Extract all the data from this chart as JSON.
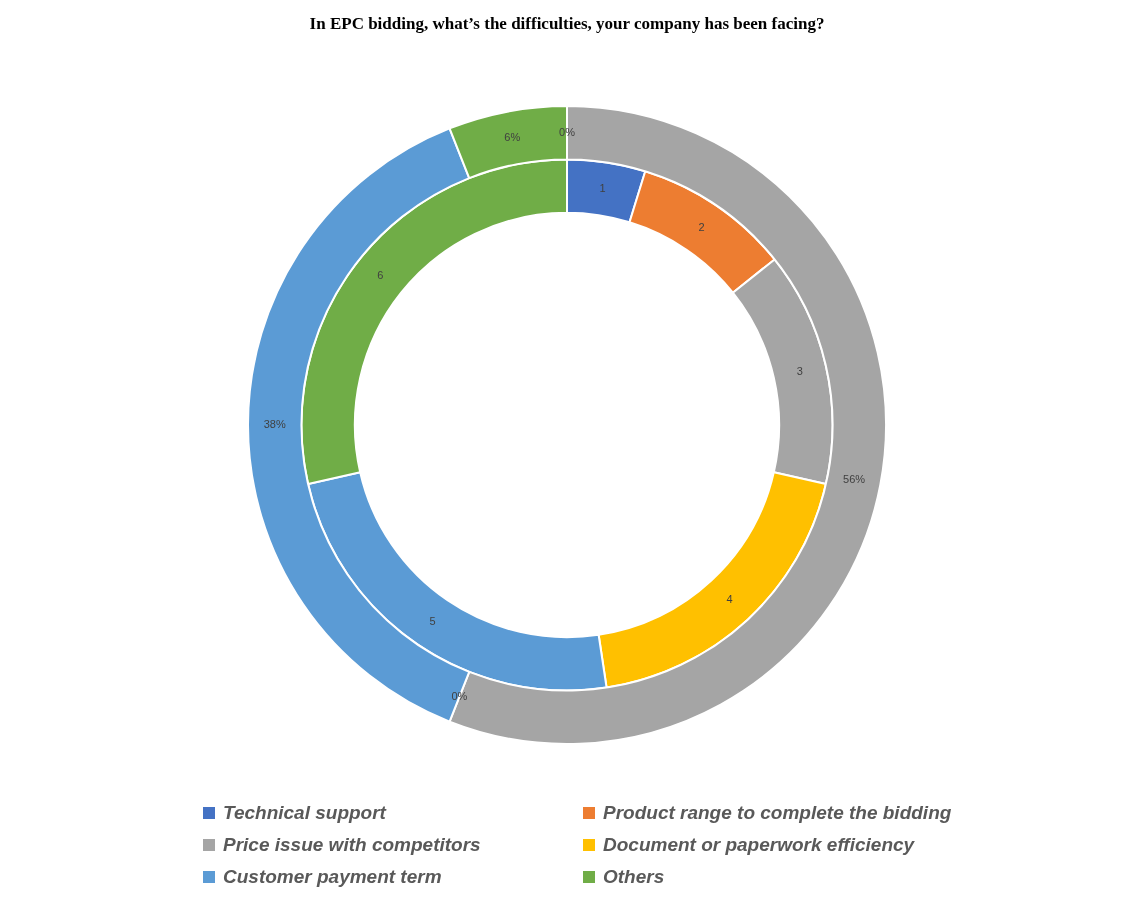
{
  "chart_data": {
    "type": "donut",
    "title": "In EPC bidding, what’s the difficulties, your company has been facing?",
    "categories": [
      "Technical support",
      "Product range to complete the bidding",
      "Price issue with competitors",
      "Document or paperwork efficiency",
      "Customer payment term",
      "Others"
    ],
    "colors": [
      "#4472c4",
      "#ed7d31",
      "#a5a5a5",
      "#ffc000",
      "#5b9bd5",
      "#70ad47"
    ],
    "series": [
      {
        "values": [
          0,
          null,
          56,
          0,
          38,
          6
        ],
        "value_labels": [
          "0%",
          null,
          "56%",
          "0%",
          "38%",
          "6%"
        ]
      },
      {
        "values": [
          1,
          2,
          3,
          4,
          5,
          6
        ]
      }
    ],
    "data_labels": true,
    "legend": "bottom"
  }
}
